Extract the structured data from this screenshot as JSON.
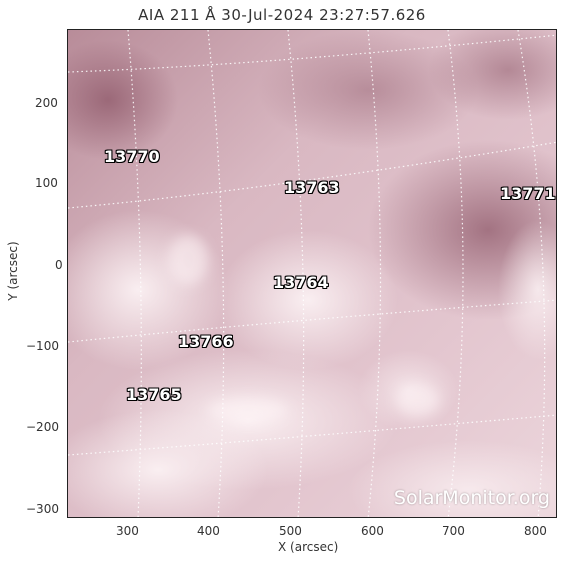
{
  "title": "AIA 211 Å 30-Jul-2024 23:27:57.626",
  "x_axis": {
    "label": "X (arcsec)",
    "ticks": [
      "300",
      "400",
      "500",
      "600",
      "700",
      "800"
    ]
  },
  "y_axis": {
    "label": "Y (arcsec)",
    "ticks": [
      "200",
      "100",
      "0",
      "−100",
      "−200",
      "−300"
    ]
  },
  "regions": [
    "13770",
    "13763",
    "13771",
    "13764",
    "13766",
    "13765"
  ],
  "watermark": "SolarMonitor.org",
  "colors": {
    "disk_light": "#f3dfe5",
    "disk_mid": "#d7b5bf",
    "disk_dark": "#a06b7d",
    "grid": "#ffffff"
  }
}
